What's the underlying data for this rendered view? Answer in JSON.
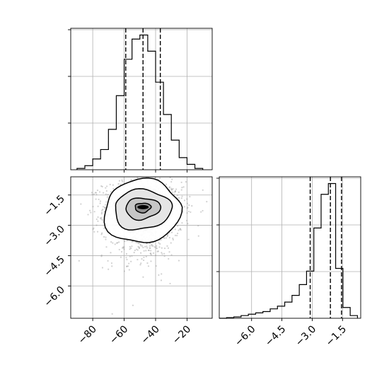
{
  "chart_data": {
    "type": "corner",
    "parameters": [
      "",
      ""
    ],
    "panels": [
      {
        "name": "hist-param1",
        "type": "histogram-step",
        "xlim": [
          -94,
          -4
        ],
        "ylim": [
          0,
          1.05
        ],
        "xticks": [
          -80,
          -60,
          -40,
          -20
        ],
        "quantiles": [
          -59,
          -48,
          -37
        ],
        "grid": true,
        "bins": {
          "edges": [
            -90,
            -85,
            -80,
            -75,
            -70,
            -65,
            -60,
            -55,
            -50,
            -45,
            -40,
            -35,
            -30,
            -25,
            -20,
            -15,
            -10
          ],
          "heights": [
            0.01,
            0.03,
            0.08,
            0.15,
            0.3,
            0.55,
            0.82,
            0.97,
            1.0,
            0.88,
            0.65,
            0.41,
            0.22,
            0.09,
            0.04,
            0.01
          ]
        }
      },
      {
        "name": "hist-param2",
        "type": "histogram-step",
        "xlim": [
          -7.6,
          -0.6
        ],
        "ylim": [
          0,
          1.05
        ],
        "xticks": [
          -6.0,
          -4.5,
          -3.0,
          -1.5
        ],
        "xticklabels": [
          "−6.0",
          "−4.5",
          "−3.0",
          "−1.5"
        ],
        "quantiles": [
          -3.1,
          -2.1,
          -1.55
        ],
        "grid": true,
        "bins": {
          "edges": [
            -7.6,
            -7.24,
            -6.88,
            -6.52,
            -6.16,
            -5.8,
            -5.44,
            -5.08,
            -4.72,
            -4.36,
            -4.0,
            -3.64,
            -3.28,
            -2.92,
            -2.56,
            -2.2,
            -1.84,
            -1.48,
            -1.12,
            -0.76
          ],
          "heights": [
            0.0,
            0.005,
            0.01,
            0.02,
            0.03,
            0.04,
            0.05,
            0.07,
            0.09,
            0.12,
            0.17,
            0.25,
            0.35,
            0.67,
            0.92,
            1.0,
            0.37,
            0.08,
            0.02
          ]
        }
      },
      {
        "name": "scatter-2d",
        "type": "2d-density",
        "xlim": [
          -94,
          -4
        ],
        "ylim": [
          -7.6,
          -0.6
        ],
        "xticks": [
          -80,
          -60,
          -40,
          -20
        ],
        "xticklabels": [
          "−80",
          "−60",
          "−40",
          "−20"
        ],
        "yticks": [
          -6.0,
          -4.5,
          -3.0,
          -1.5
        ],
        "yticklabels": [
          "−6.0",
          "−4.5",
          "−3.0",
          "−1.5"
        ],
        "grid": true,
        "peak": [
          -48,
          -2.1
        ],
        "spread": {
          "x_sd": 11,
          "y_sd_upper": 0.45,
          "y_sd_lower": 1.05
        },
        "contours": [
          {
            "level": 1,
            "rx": 5,
            "ry": 0.2
          },
          {
            "level": 2,
            "rx": 11,
            "ry": 0.45
          },
          {
            "level": 3,
            "rx": 18,
            "ry": 0.85
          },
          {
            "level": 4,
            "rx": 24,
            "ry": 1.35
          }
        ],
        "n_points": 1400
      }
    ]
  }
}
